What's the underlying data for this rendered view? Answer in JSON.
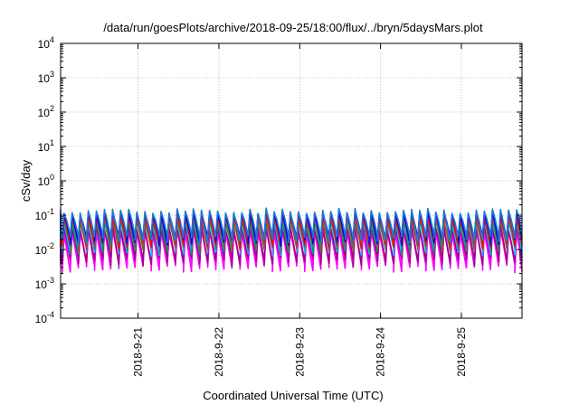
{
  "chart_data": {
    "type": "line",
    "title": "/data/run/goesPlots/archive/2018-09-25/18:00/flux/../bryn/5daysMars.plot",
    "xlabel": "Coordinated Universal Time (UTC)",
    "ylabel": "cSv/day",
    "yscale": "log",
    "ylim": [
      0.0001,
      10000
    ],
    "xlim": [
      "2018-09-20T01:00",
      "2018-09-25T18:00"
    ],
    "grid": true,
    "x_ticks": [
      "2018-9-21",
      "2018-9-22",
      "2018-9-23",
      "2018-9-24",
      "2018-9-25"
    ],
    "y_ticks": [
      {
        "base": "10",
        "exp": "-4"
      },
      {
        "base": "10",
        "exp": "-3"
      },
      {
        "base": "10",
        "exp": "-2"
      },
      {
        "base": "10",
        "exp": "-1"
      },
      {
        "base": "10",
        "exp": "0"
      },
      {
        "base": "10",
        "exp": "1"
      },
      {
        "base": "10",
        "exp": "2"
      },
      {
        "base": "10",
        "exp": "3"
      },
      {
        "base": "10",
        "exp": "4"
      }
    ],
    "pattern": {
      "description": "sawtooth: sharp rise to peak followed by decay, about 10 cycles per day",
      "cycles_per_day": 10
    },
    "series": [
      {
        "color": "#ff00ff",
        "peak": 0.035,
        "trough": 0.003
      },
      {
        "color": "#ff00ff",
        "peak": 0.04,
        "trough": 0.0035
      },
      {
        "color": "#a0008a",
        "peak": 0.045,
        "trough": 0.0045
      },
      {
        "color": "#00c0ff",
        "peak": 0.065,
        "trough": 0.009
      },
      {
        "color": "#00a060",
        "peak": 0.07,
        "trough": 0.01
      },
      {
        "color": "#a0522d",
        "peak": 0.08,
        "trough": 0.012
      },
      {
        "color": "#ff0000",
        "peak": 0.1,
        "trough": 0.015
      },
      {
        "color": "#0000ff",
        "peak": 0.12,
        "trough": 0.018
      },
      {
        "color": "#1f77d4",
        "peak": 0.14,
        "trough": 0.02
      }
    ]
  }
}
